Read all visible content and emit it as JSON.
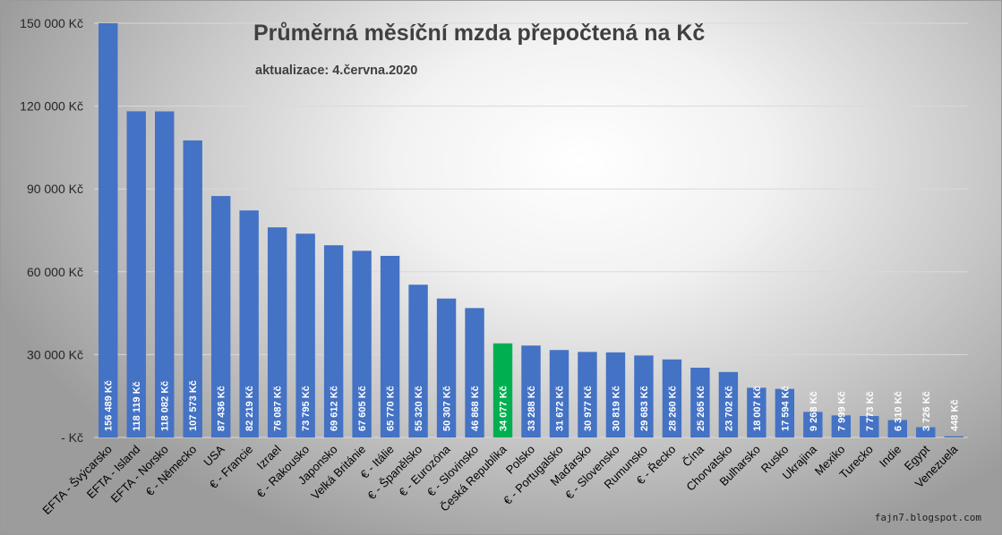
{
  "chart_data": {
    "type": "bar",
    "title": "Průměrná měsíční mzda přepočtená na Kč",
    "subtitle": "aktualizace: 4.června.2020",
    "xlabel": "",
    "ylabel": "",
    "ylim": [
      0,
      150000
    ],
    "yticks": [
      {
        "value": 0,
        "label": "-   Kč"
      },
      {
        "value": 30000,
        "label": "30 000 Kč"
      },
      {
        "value": 60000,
        "label": "60 000 Kč"
      },
      {
        "value": 90000,
        "label": "90 000 Kč"
      },
      {
        "value": 120000,
        "label": "120 000 Kč"
      },
      {
        "value": 150000,
        "label": "150 000 Kč"
      }
    ],
    "grid": true,
    "bar_color": "#4472c4",
    "highlight_color": "#00b050",
    "categories": [
      "EFTA - Švýcarsko",
      "EFTA - Island",
      "EFTA - Norsko",
      "€ - Německo",
      "USA",
      "€ - Francie",
      "Izrael",
      "€ - Rakousko",
      "Japonsko",
      "Velká Británie",
      "€ - Itálie",
      "€ - Španělsko",
      "€ - Eurozóna",
      "€ - Slovinsko",
      "Česká Republika",
      "Polsko",
      "€ - Portugalsko",
      "Maďarsko",
      "€ - Slovensko",
      "Rumunsko",
      "€ - Řecko",
      "Čína",
      "Chorvatsko",
      "Bulharsko",
      "Rusko",
      "Ukrajina",
      "Mexiko",
      "Turecko",
      "Indie",
      "Egypt",
      "Venezuela"
    ],
    "values": [
      156489,
      118119,
      118082,
      107573,
      87436,
      82219,
      76087,
      73795,
      69612,
      67605,
      65770,
      55320,
      50307,
      46868,
      34077,
      33288,
      31672,
      30977,
      30819,
      29683,
      28260,
      25265,
      23702,
      18007,
      17594,
      9268,
      7999,
      7773,
      6310,
      3726,
      448
    ],
    "value_labels": [
      "156 489 Kč",
      "118 119 Kč",
      "118 082 Kč",
      "107 573 Kč",
      "87 436 Kč",
      "82 219 Kč",
      "76 087 Kč",
      "73 795 Kč",
      "69 612 Kč",
      "67 605 Kč",
      "65 770 Kč",
      "55 320 Kč",
      "50 307 Kč",
      "46 868 Kč",
      "34 077 Kč",
      "33 288 Kč",
      "31 672 Kč",
      "30 977 Kč",
      "30 819 Kč",
      "29 683 Kč",
      "28 260 Kč",
      "25 265 Kč",
      "23 702 Kč",
      "18 007 Kč",
      "17 594 Kč",
      "9 268 Kč",
      "7 999 Kč",
      "7 773 Kč",
      "6 310 Kč",
      "3 726 Kč",
      "448 Kč"
    ],
    "highlight_index": 14
  },
  "watermark": "fajn7.blogspot.com"
}
